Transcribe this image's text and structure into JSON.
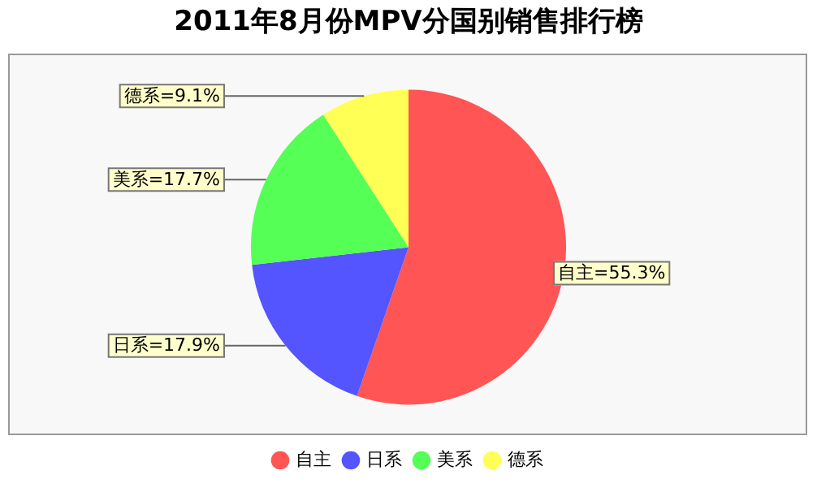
{
  "chart_data": {
    "type": "pie",
    "title": "2011年8月份MPV分国别销售排行榜",
    "categories": [
      "自主",
      "日系",
      "美系",
      "德系"
    ],
    "values": [
      55.3,
      17.9,
      17.7,
      9.1
    ],
    "colors": [
      "#ff5555",
      "#5555ff",
      "#55ff55",
      "#ffff55"
    ],
    "value_labels": [
      "自主=55.3%",
      "日系=17.9%",
      "美系=17.7%",
      "德系=9.1%"
    ],
    "legend": "bottom"
  }
}
